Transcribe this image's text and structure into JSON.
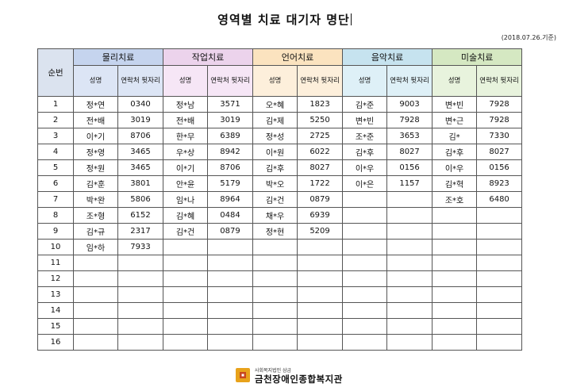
{
  "title": "영역별 치료 대기자 명단",
  "date_note": "(2018.07.26.기준)",
  "table": {
    "number_header": "순번",
    "groups": [
      {
        "label": "물리치료",
        "sub": [
          "성명",
          "연락처 뒷자리"
        ]
      },
      {
        "label": "작업치료",
        "sub": [
          "성명",
          "연락처 뒷자리"
        ]
      },
      {
        "label": "언어치료",
        "sub": [
          "성명",
          "연락처 뒷자리"
        ]
      },
      {
        "label": "음악치료",
        "sub": [
          "성명",
          "연락처 뒷자리"
        ]
      },
      {
        "label": "미술치료",
        "sub": [
          "성명",
          "연락처 뒷자리"
        ]
      }
    ],
    "rows": [
      {
        "no": "1",
        "cells": [
          "정*연",
          "0340",
          "정*남",
          "3571",
          "오*혜",
          "1823",
          "김*준",
          "9003",
          "변*빈",
          "7928"
        ]
      },
      {
        "no": "2",
        "cells": [
          "전*배",
          "3019",
          "전*배",
          "3019",
          "김*제",
          "5250",
          "변*빈",
          "7928",
          "변*근",
          "7928"
        ]
      },
      {
        "no": "3",
        "cells": [
          "이*기",
          "8706",
          "한*무",
          "6389",
          "정*성",
          "2725",
          "조*준",
          "3653",
          "김*",
          "7330"
        ]
      },
      {
        "no": "4",
        "cells": [
          "정*영",
          "3465",
          "우*상",
          "8942",
          "이*원",
          "6022",
          "김*후",
          "8027",
          "김*후",
          "8027"
        ]
      },
      {
        "no": "5",
        "cells": [
          "정*원",
          "3465",
          "이*기",
          "8706",
          "김*후",
          "8027",
          "이*우",
          "0156",
          "이*우",
          "0156"
        ]
      },
      {
        "no": "6",
        "cells": [
          "김*훈",
          "3801",
          "안*윤",
          "5179",
          "박*오",
          "1722",
          "이*은",
          "1157",
          "김*혁",
          "8923"
        ]
      },
      {
        "no": "7",
        "cells": [
          "박*완",
          "5806",
          "임*나",
          "8964",
          "김*건",
          "0879",
          "",
          "",
          "조*호",
          "6480"
        ]
      },
      {
        "no": "8",
        "cells": [
          "조*형",
          "6152",
          "김*혜",
          "0484",
          "채*우",
          "6939",
          "",
          "",
          "",
          ""
        ]
      },
      {
        "no": "9",
        "cells": [
          "김*규",
          "2317",
          "김*건",
          "0879",
          "정*현",
          "5209",
          "",
          "",
          "",
          ""
        ]
      },
      {
        "no": "10",
        "cells": [
          "임*하",
          "7933",
          "",
          "",
          "",
          "",
          "",
          "",
          "",
          ""
        ]
      },
      {
        "no": "11",
        "cells": [
          "",
          "",
          "",
          "",
          "",
          "",
          "",
          "",
          "",
          ""
        ]
      },
      {
        "no": "12",
        "cells": [
          "",
          "",
          "",
          "",
          "",
          "",
          "",
          "",
          "",
          ""
        ]
      },
      {
        "no": "13",
        "cells": [
          "",
          "",
          "",
          "",
          "",
          "",
          "",
          "",
          "",
          ""
        ]
      },
      {
        "no": "14",
        "cells": [
          "",
          "",
          "",
          "",
          "",
          "",
          "",
          "",
          "",
          ""
        ]
      },
      {
        "no": "15",
        "cells": [
          "",
          "",
          "",
          "",
          "",
          "",
          "",
          "",
          "",
          ""
        ]
      },
      {
        "no": "16",
        "cells": [
          "",
          "",
          "",
          "",
          "",
          "",
          "",
          "",
          "",
          ""
        ]
      }
    ]
  },
  "footer": {
    "org_sub": "사회복지법인 삼금",
    "org_name": "금천장애인종합복지관",
    "logo_colors": [
      "#e8a21b",
      "#c8471f"
    ]
  }
}
